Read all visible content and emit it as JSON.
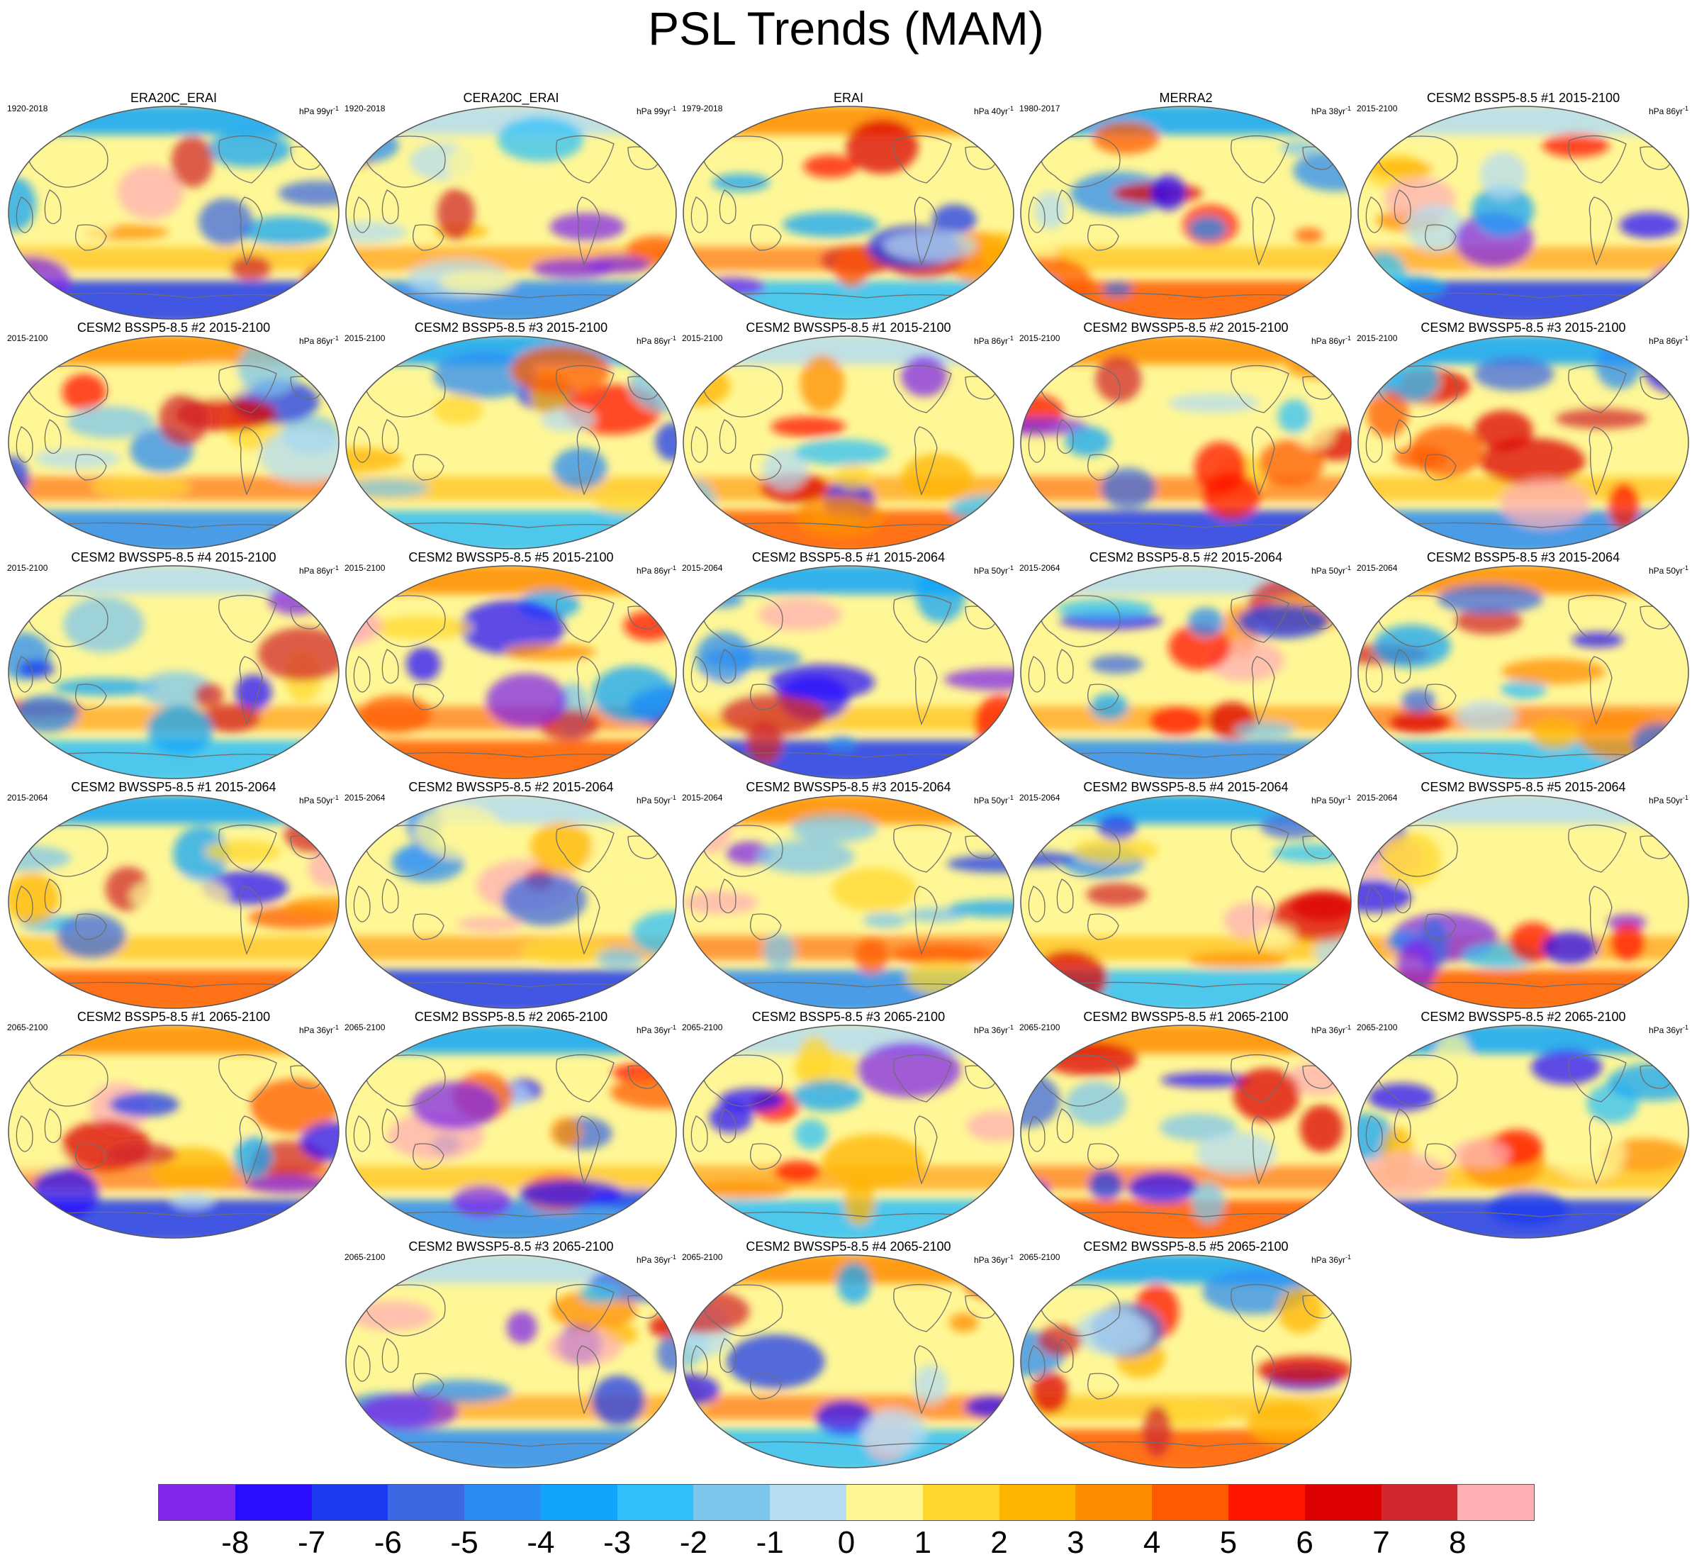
{
  "title": "PSL Trends (MAM)",
  "colors": {
    "ocean_base": "#fff796",
    "coast": "#6e6e6e",
    "border": "#555555",
    "palette": [
      "#8226ea",
      "#2a0eff",
      "#1e3af0",
      "#3c69e3",
      "#2a8cf5",
      "#12a4fa",
      "#2fc0fb",
      "#7cc6ee",
      "#b4dcf2",
      "#fff796",
      "#ffd72f",
      "#ffb400",
      "#ff8c00",
      "#ff5a00",
      "#ff1400",
      "#dc0000",
      "#d2282d",
      "#ffafb4"
    ]
  },
  "colorbar": {
    "labels": [
      "-8",
      "-7",
      "-6",
      "-5",
      "-4",
      "-3",
      "-2",
      "-1",
      "0",
      "1",
      "2",
      "3",
      "4",
      "5",
      "6",
      "7",
      "8"
    ]
  },
  "panels": [
    {
      "title": "ERA20C_ERAI",
      "period": "1920-2018",
      "units": "hPa 99yr",
      "exp": "-1"
    },
    {
      "title": "CERA20C_ERAI",
      "period": "1920-2018",
      "units": "hPa 99yr",
      "exp": "-1"
    },
    {
      "title": "ERAI",
      "period": "1979-2018",
      "units": "hPa 40yr",
      "exp": "-1"
    },
    {
      "title": "MERRA2",
      "period": "1980-2017",
      "units": "hPa 38yr",
      "exp": "-1"
    },
    {
      "title": "CESM2 BSSP5-8.5 #1 2015-2100",
      "period": "2015-2100",
      "units": "hPa 86yr",
      "exp": "-1"
    },
    {
      "title": "CESM2 BSSP5-8.5 #2 2015-2100",
      "period": "2015-2100",
      "units": "hPa 86yr",
      "exp": "-1"
    },
    {
      "title": "CESM2 BSSP5-8.5 #3 2015-2100",
      "period": "2015-2100",
      "units": "hPa 86yr",
      "exp": "-1"
    },
    {
      "title": "CESM2 BWSSP5-8.5 #1 2015-2100",
      "period": "2015-2100",
      "units": "hPa 86yr",
      "exp": "-1"
    },
    {
      "title": "CESM2 BWSSP5-8.5 #2 2015-2100",
      "period": "2015-2100",
      "units": "hPa 86yr",
      "exp": "-1"
    },
    {
      "title": "CESM2 BWSSP5-8.5 #3 2015-2100",
      "period": "2015-2100",
      "units": "hPa 86yr",
      "exp": "-1"
    },
    {
      "title": "CESM2 BWSSP5-8.5 #4 2015-2100",
      "period": "2015-2100",
      "units": "hPa 86yr",
      "exp": "-1"
    },
    {
      "title": "CESM2 BWSSP5-8.5 #5 2015-2100",
      "period": "2015-2100",
      "units": "hPa 86yr",
      "exp": "-1"
    },
    {
      "title": "CESM2 BSSP5-8.5 #1 2015-2064",
      "period": "2015-2064",
      "units": "hPa 50yr",
      "exp": "-1"
    },
    {
      "title": "CESM2 BSSP5-8.5 #2 2015-2064",
      "period": "2015-2064",
      "units": "hPa 50yr",
      "exp": "-1"
    },
    {
      "title": "CESM2 BSSP5-8.5 #3 2015-2064",
      "period": "2015-2064",
      "units": "hPa 50yr",
      "exp": "-1"
    },
    {
      "title": "CESM2 BWSSP5-8.5 #1 2015-2064",
      "period": "2015-2064",
      "units": "hPa 50yr",
      "exp": "-1"
    },
    {
      "title": "CESM2 BWSSP5-8.5 #2 2015-2064",
      "period": "2015-2064",
      "units": "hPa 50yr",
      "exp": "-1"
    },
    {
      "title": "CESM2 BWSSP5-8.5 #3 2015-2064",
      "period": "2015-2064",
      "units": "hPa 50yr",
      "exp": "-1"
    },
    {
      "title": "CESM2 BWSSP5-8.5 #4 2015-2064",
      "period": "2015-2064",
      "units": "hPa 50yr",
      "exp": "-1"
    },
    {
      "title": "CESM2 BWSSP5-8.5 #5 2015-2064",
      "period": "2015-2064",
      "units": "hPa 50yr",
      "exp": "-1"
    },
    {
      "title": "CESM2 BSSP5-8.5 #1 2065-2100",
      "period": "2065-2100",
      "units": "hPa 36yr",
      "exp": "-1"
    },
    {
      "title": "CESM2 BSSP5-8.5 #2 2065-2100",
      "period": "2065-2100",
      "units": "hPa 36yr",
      "exp": "-1"
    },
    {
      "title": "CESM2 BSSP5-8.5 #3 2065-2100",
      "period": "2065-2100",
      "units": "hPa 36yr",
      "exp": "-1"
    },
    {
      "title": "CESM2 BWSSP5-8.5 #1 2065-2100",
      "period": "2065-2100",
      "units": "hPa 36yr",
      "exp": "-1"
    },
    {
      "title": "CESM2 BWSSP5-8.5 #2 2065-2100",
      "period": "2065-2100",
      "units": "hPa 36yr",
      "exp": "-1"
    },
    {
      "title": "CESM2 BWSSP5-8.5 #3 2065-2100",
      "period": "2065-2100",
      "units": "hPa 36yr",
      "exp": "-1"
    },
    {
      "title": "CESM2 BWSSP5-8.5 #4 2065-2100",
      "period": "2065-2100",
      "units": "hPa 36yr",
      "exp": "-1"
    },
    {
      "title": "CESM2 BWSSP5-8.5 #5 2065-2100",
      "period": "2065-2100",
      "units": "hPa 36yr",
      "exp": "-1"
    }
  ]
}
